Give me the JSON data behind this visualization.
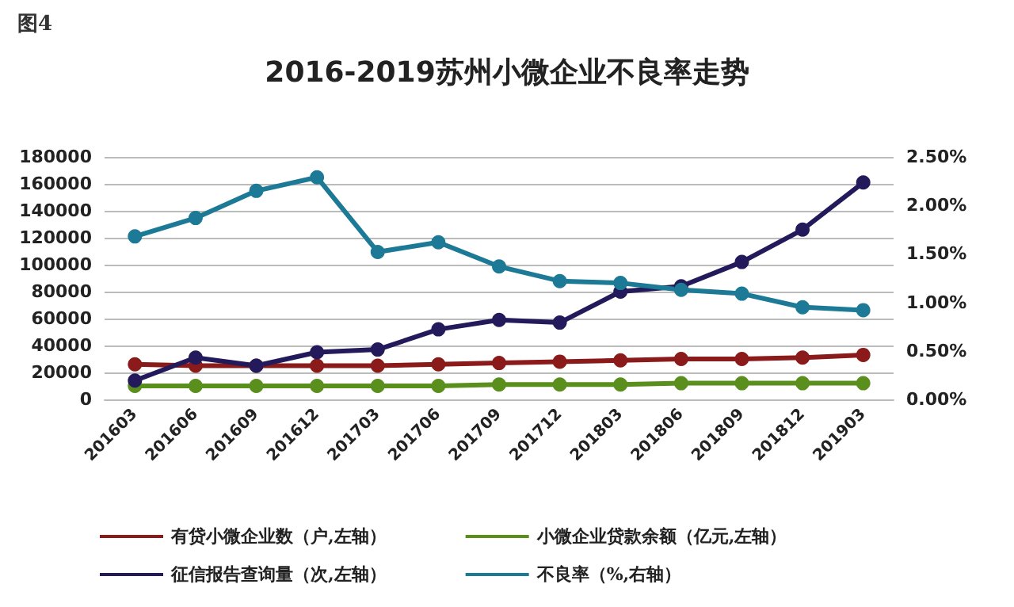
{
  "chart_data": {
    "type": "line",
    "title": "2016-2019苏州小微企业不良率走势",
    "annotations": [
      "图4"
    ],
    "categories": [
      "201603",
      "201606",
      "201609",
      "201612",
      "201703",
      "201706",
      "201709",
      "201712",
      "201803",
      "201806",
      "201809",
      "201812",
      "201903"
    ],
    "series": [
      {
        "name": "有贷小微企业数（户,左轴）",
        "color": "#8b1a1a",
        "values": [
          26000,
          25000,
          25000,
          25000,
          25000,
          26000,
          27000,
          28000,
          29000,
          30000,
          30000,
          31000,
          33000
        ]
      },
      {
        "name": "小微企业贷款余额（亿元,左轴）",
        "color": "#5a8f1e",
        "values": [
          10000,
          10000,
          10000,
          10000,
          10000,
          10000,
          11000,
          11000,
          11000,
          12000,
          12000,
          12000,
          12000
        ]
      },
      {
        "name": "征信报告查询量（次,左轴）",
        "color": "#231a5c",
        "values": [
          14000,
          31000,
          25000,
          35000,
          37000,
          52000,
          59000,
          57000,
          80000,
          84000,
          102000,
          126000,
          161000
        ]
      },
      {
        "name": "不良率（%,右轴）",
        "color": "#1d7a96",
        "axis": "y2",
        "values": [
          1.68,
          1.87,
          2.15,
          2.29,
          1.52,
          1.62,
          1.37,
          1.22,
          1.2,
          1.13,
          1.09,
          0.95,
          0.92
        ]
      }
    ],
    "ylim": [
      0,
      180000
    ],
    "yticks": [
      0,
      20000,
      40000,
      60000,
      80000,
      100000,
      120000,
      140000,
      160000,
      180000
    ],
    "y2lim": [
      0,
      2.5
    ],
    "y2ticks": [
      {
        "value": 0,
        "label": "0.00%"
      },
      {
        "value": 0.5,
        "label": "0.50%"
      },
      {
        "value": 1,
        "label": "1.00%"
      },
      {
        "value": 1.5,
        "label": "1.50%"
      },
      {
        "value": 2,
        "label": "2.00%"
      },
      {
        "value": 2.5,
        "label": "2.50%"
      }
    ],
    "grid": "y",
    "legend": "bottom",
    "marker": "circle",
    "line_style": "solid"
  }
}
